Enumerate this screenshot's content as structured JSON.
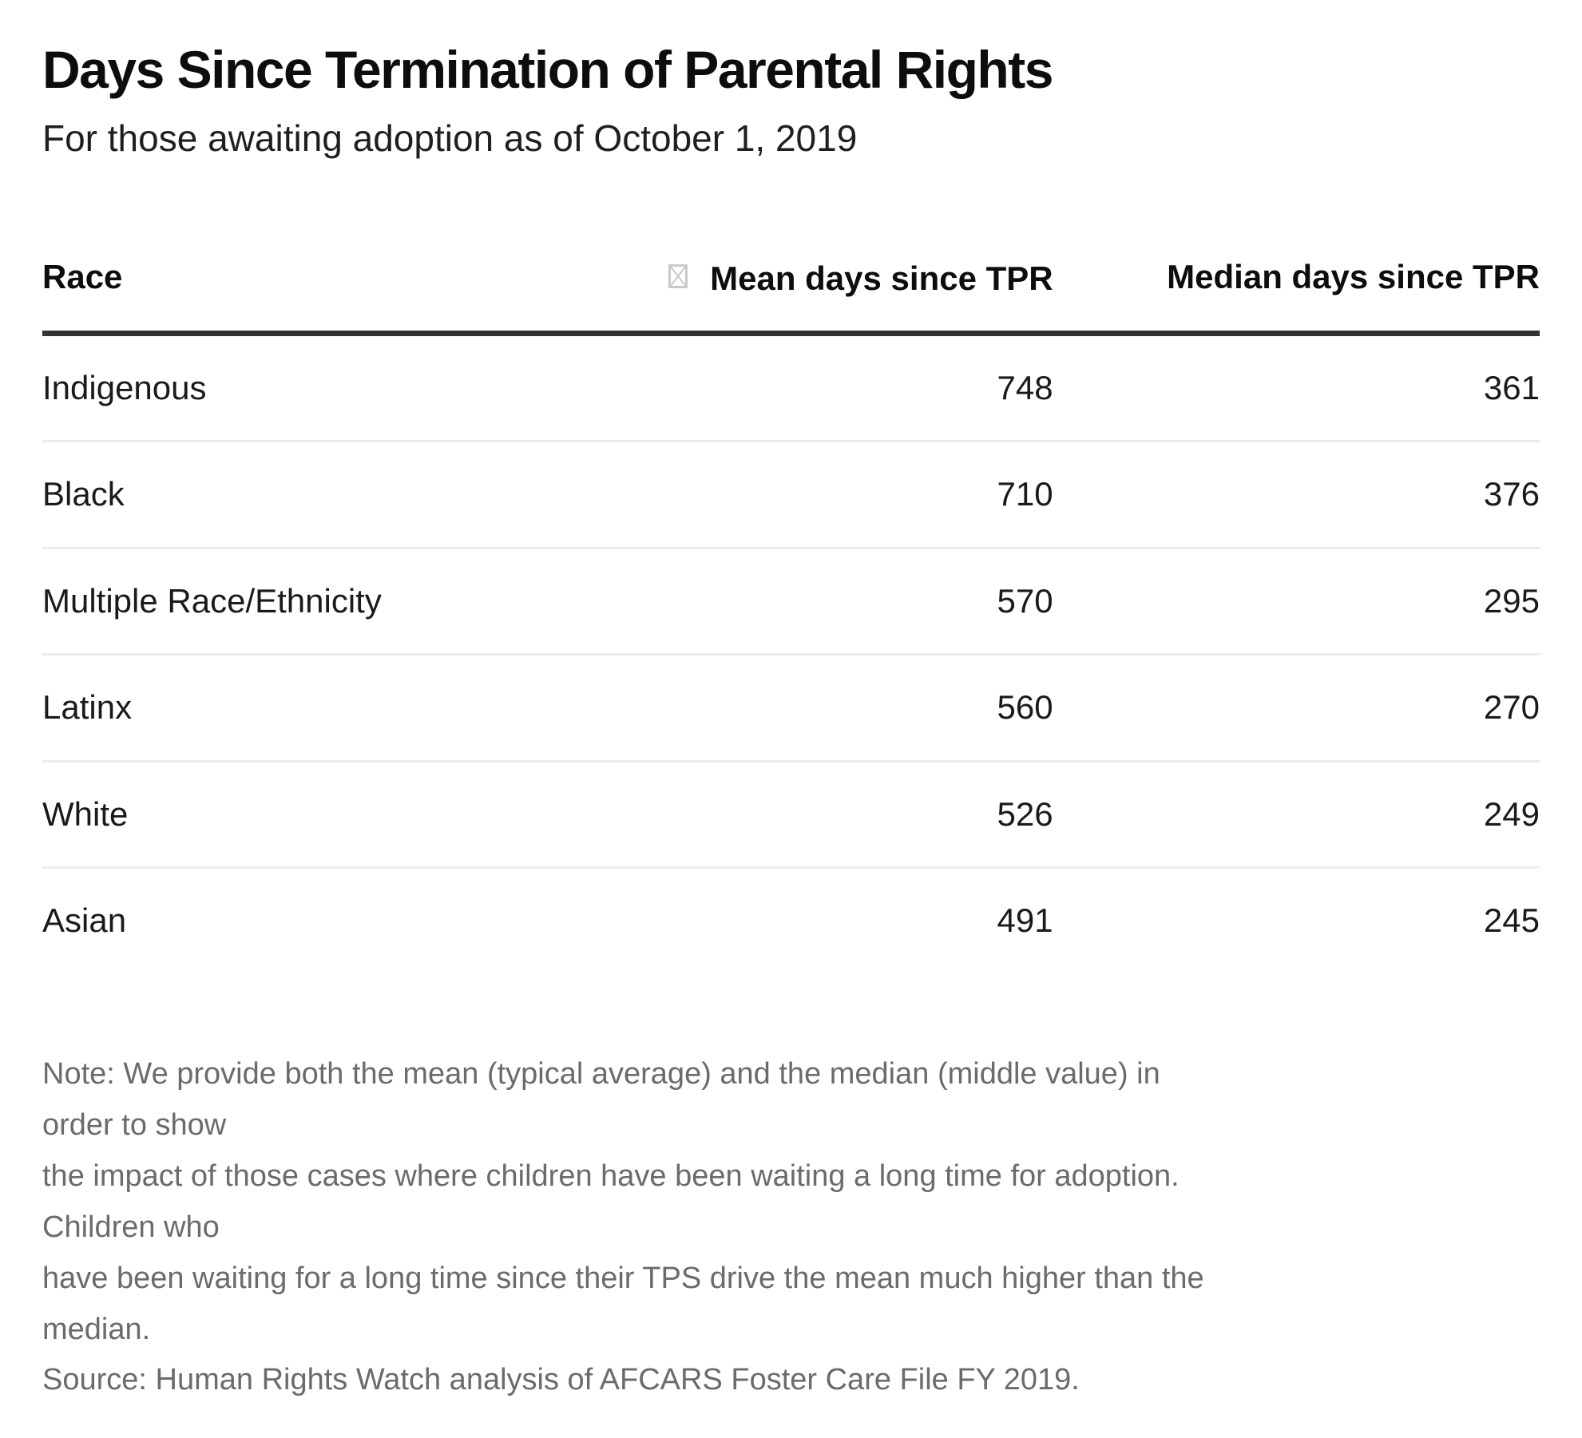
{
  "header": {
    "title": "Days Since Termination of Parental Rights",
    "subtitle": "For those awaiting adoption as of October 1, 2019"
  },
  "table": {
    "columns": [
      "Race",
      "Mean days since TPR",
      "Median days since TPR"
    ],
    "mean_header_icon": "missing-glyph-tofu-box",
    "rows": [
      {
        "race": "Indigenous",
        "mean": "748",
        "median": "361"
      },
      {
        "race": "Black",
        "mean": "710",
        "median": "376"
      },
      {
        "race": "Multiple Race/Ethnicity",
        "mean": "570",
        "median": "295"
      },
      {
        "race": "Latinx",
        "mean": "560",
        "median": "270"
      },
      {
        "race": "White",
        "mean": "526",
        "median": "249"
      },
      {
        "race": "Asian",
        "mean": "491",
        "median": "245"
      }
    ]
  },
  "note": {
    "lines": [
      "Note: We provide both the mean (typical average) and the median (middle value) in order to show",
      "the impact of those cases where children have been waiting a long time for adoption. Children who",
      "have been waiting for a long time since their TPS drive the mean much higher than the median.",
      "Source: Human Rights Watch analysis of AFCARS Foster Care File FY 2019."
    ]
  },
  "colors": {
    "header_rule": "#333333",
    "row_separator": "#ececec",
    "note_text": "#6b6b6b",
    "missing_glyph": "#c9c9c9",
    "body_text": "#1a1a1a"
  },
  "chart_data": {
    "type": "table",
    "title": "Days Since Termination of Parental Rights",
    "subtitle": "For those awaiting adoption as of October 1, 2019",
    "columns": [
      "Race",
      "Mean days since TPR",
      "Median days since TPR"
    ],
    "rows": [
      [
        "Indigenous",
        748,
        361
      ],
      [
        "Black",
        710,
        376
      ],
      [
        "Multiple Race/Ethnicity",
        570,
        295
      ],
      [
        "Latinx",
        560,
        270
      ],
      [
        "White",
        526,
        249
      ],
      [
        "Asian",
        491,
        245
      ]
    ],
    "note": "Note: We provide both the mean (typical average) and the median (middle value) in order to show the impact of those cases where children have been waiting a long time for adoption. Children who have been waiting for a long time since their TPS drive the mean much higher than the median.",
    "source": "Source: Human Rights Watch analysis of AFCARS Foster Care File FY 2019.",
    "layout": {
      "grid": "horizontal separators only",
      "header_rule": "thick dark",
      "value_alignment": "right"
    }
  }
}
